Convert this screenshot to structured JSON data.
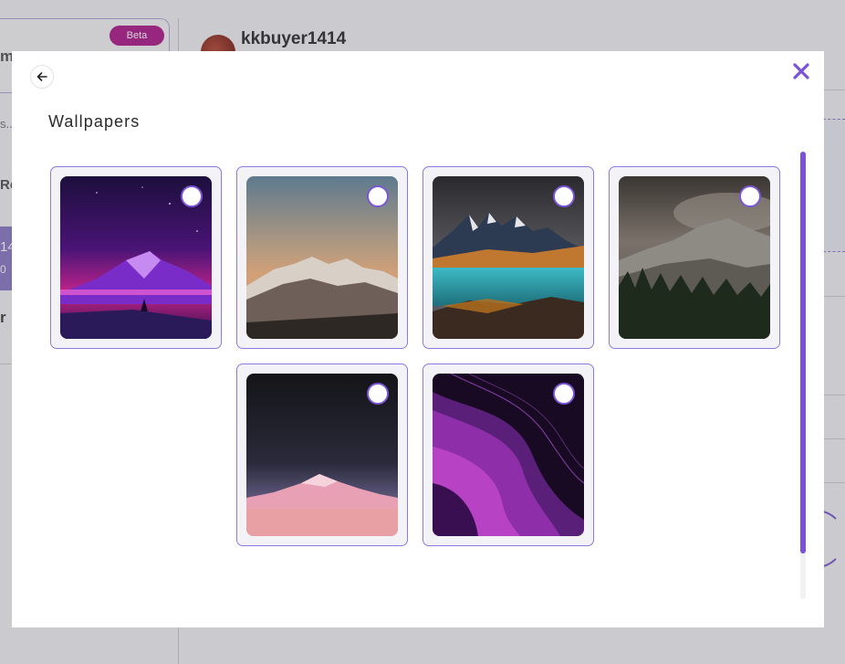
{
  "background": {
    "beta_badge": "Beta",
    "panel_letter": "m",
    "username": "kkbuyer1414",
    "search_partial": "s...",
    "section_partial": "Re",
    "selected_partial": "14",
    "selected_sub_partial": "0",
    "row_partial": "r"
  },
  "modal": {
    "title": "Wallpapers",
    "back_icon": "arrow-left-icon",
    "close_icon": "close-icon",
    "accent_color": "#7a52d9",
    "wallpapers": [
      {
        "name": "purple-mountain-moon",
        "selected": false
      },
      {
        "name": "sunset-snow-peaks",
        "selected": false
      },
      {
        "name": "patagonia-lake",
        "selected": false
      },
      {
        "name": "misty-forest-cliffs",
        "selected": false
      },
      {
        "name": "pink-desert-dunes",
        "selected": false
      },
      {
        "name": "purple-waves",
        "selected": false
      }
    ]
  }
}
